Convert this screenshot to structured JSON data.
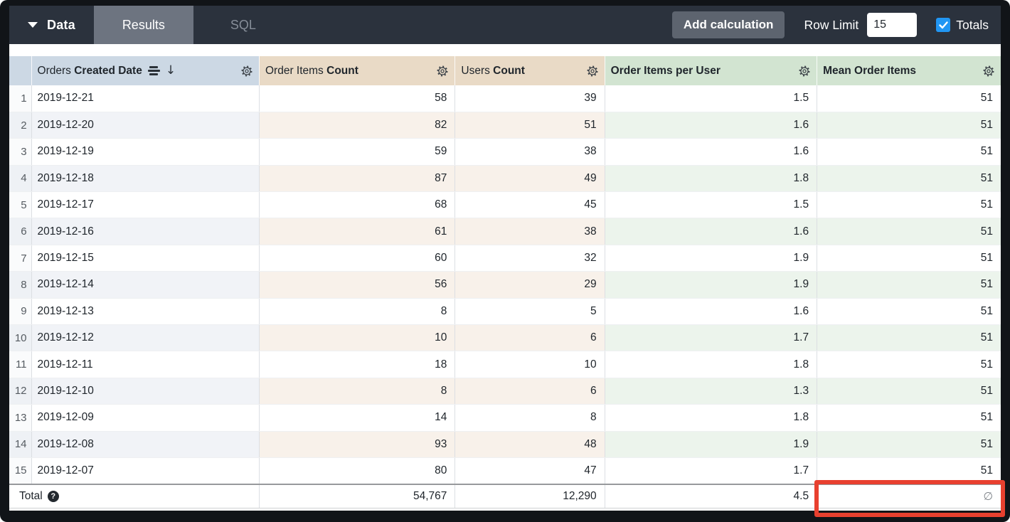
{
  "toolbar": {
    "data_menu_label": "Data",
    "tabs": [
      {
        "label": "Results",
        "active": true
      },
      {
        "label": "SQL",
        "active": false
      }
    ],
    "add_calculation_label": "Add calculation",
    "row_limit_label": "Row Limit",
    "row_limit_value": "15",
    "totals_label": "Totals",
    "totals_checked": true
  },
  "table": {
    "columns": [
      {
        "id": "date",
        "label_prefix": "Orders",
        "label_bold": "Created Date",
        "type": "dimension",
        "sorted_desc": true
      },
      {
        "id": "order_items_count",
        "label_prefix": "Order Items",
        "label_bold": "Count",
        "type": "measure"
      },
      {
        "id": "users_count",
        "label_prefix": "Users",
        "label_bold": "Count",
        "type": "measure"
      },
      {
        "id": "order_items_per_user",
        "label_prefix": "",
        "label_bold": "Order Items per User",
        "type": "table_calculation"
      },
      {
        "id": "mean_order_items",
        "label_prefix": "",
        "label_bold": "Mean Order Items",
        "type": "table_calculation"
      }
    ],
    "rows": [
      {
        "n": "1",
        "date": "2019-12-21",
        "order_items_count": "58",
        "users_count": "39",
        "order_items_per_user": "1.5",
        "mean_order_items": "51"
      },
      {
        "n": "2",
        "date": "2019-12-20",
        "order_items_count": "82",
        "users_count": "51",
        "order_items_per_user": "1.6",
        "mean_order_items": "51"
      },
      {
        "n": "3",
        "date": "2019-12-19",
        "order_items_count": "59",
        "users_count": "38",
        "order_items_per_user": "1.6",
        "mean_order_items": "51"
      },
      {
        "n": "4",
        "date": "2019-12-18",
        "order_items_count": "87",
        "users_count": "49",
        "order_items_per_user": "1.8",
        "mean_order_items": "51"
      },
      {
        "n": "5",
        "date": "2019-12-17",
        "order_items_count": "68",
        "users_count": "45",
        "order_items_per_user": "1.5",
        "mean_order_items": "51"
      },
      {
        "n": "6",
        "date": "2019-12-16",
        "order_items_count": "61",
        "users_count": "38",
        "order_items_per_user": "1.6",
        "mean_order_items": "51"
      },
      {
        "n": "7",
        "date": "2019-12-15",
        "order_items_count": "60",
        "users_count": "32",
        "order_items_per_user": "1.9",
        "mean_order_items": "51"
      },
      {
        "n": "8",
        "date": "2019-12-14",
        "order_items_count": "56",
        "users_count": "29",
        "order_items_per_user": "1.9",
        "mean_order_items": "51"
      },
      {
        "n": "9",
        "date": "2019-12-13",
        "order_items_count": "8",
        "users_count": "5",
        "order_items_per_user": "1.6",
        "mean_order_items": "51"
      },
      {
        "n": "10",
        "date": "2019-12-12",
        "order_items_count": "10",
        "users_count": "6",
        "order_items_per_user": "1.7",
        "mean_order_items": "51"
      },
      {
        "n": "11",
        "date": "2019-12-11",
        "order_items_count": "18",
        "users_count": "10",
        "order_items_per_user": "1.8",
        "mean_order_items": "51"
      },
      {
        "n": "12",
        "date": "2019-12-10",
        "order_items_count": "8",
        "users_count": "6",
        "order_items_per_user": "1.3",
        "mean_order_items": "51"
      },
      {
        "n": "13",
        "date": "2019-12-09",
        "order_items_count": "14",
        "users_count": "8",
        "order_items_per_user": "1.8",
        "mean_order_items": "51"
      },
      {
        "n": "14",
        "date": "2019-12-08",
        "order_items_count": "93",
        "users_count": "48",
        "order_items_per_user": "1.9",
        "mean_order_items": "51"
      },
      {
        "n": "15",
        "date": "2019-12-07",
        "order_items_count": "80",
        "users_count": "47",
        "order_items_per_user": "1.7",
        "mean_order_items": "51"
      }
    ],
    "total": {
      "label": "Total",
      "order_items_count": "54,767",
      "users_count": "12,290",
      "order_items_per_user": "4.5",
      "mean_order_items": "∅",
      "mean_order_items_highlighted": true
    }
  },
  "colors": {
    "navbar_bg": "#2b323d",
    "active_tab_bg": "#6d7480",
    "checkbox_blue": "#2196f3",
    "dimension_header_bg": "#ccd8e4",
    "measure_header_bg": "#e9dac6",
    "calculation_header_bg": "#d2e4d1",
    "highlight_red": "#e8402f"
  }
}
